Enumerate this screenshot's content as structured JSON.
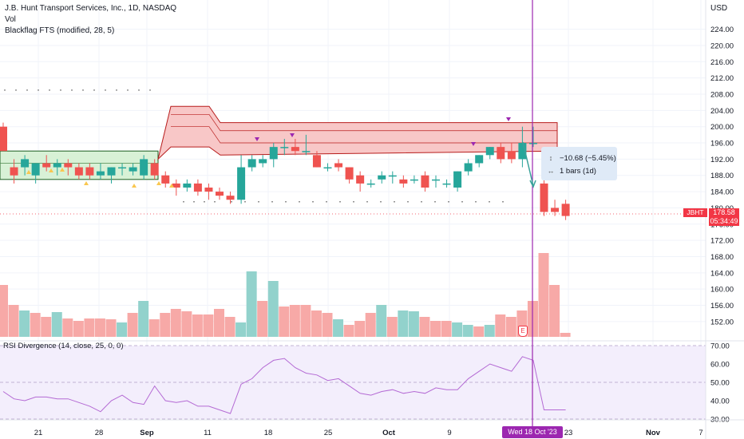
{
  "legend": {
    "symbol_line": "J.B. Hunt Transport Services, Inc., 1D, NASDAQ",
    "vol_label": "Vol",
    "indicator_label": "Blackflag FTS (modified, 28, 5)"
  },
  "currency_button": "USD",
  "price_axis": {
    "ticks": [
      "224.00",
      "220.00",
      "216.00",
      "212.00",
      "208.00",
      "204.00",
      "200.00",
      "196.00",
      "192.00",
      "188.00",
      "184.00",
      "180.00",
      "176.00",
      "172.00",
      "168.00",
      "164.00",
      "160.00",
      "156.00",
      "152.00"
    ]
  },
  "rsi": {
    "label": "RSI Divergence (14, close, 25, 0, 0)",
    "ticks": [
      "70.00",
      "60.00",
      "50.00",
      "40.00",
      "30.00"
    ],
    "values": [
      45,
      41,
      40,
      42,
      42,
      41,
      41,
      39,
      37,
      34,
      40,
      43,
      39,
      38,
      48,
      40,
      39,
      40,
      37,
      37,
      35,
      33,
      49,
      52,
      58,
      62,
      63,
      58,
      55,
      54,
      51,
      52,
      48,
      44,
      43,
      45,
      46,
      44,
      45,
      44,
      47,
      46,
      46,
      52,
      56,
      60,
      58,
      56,
      64,
      62,
      35,
      35,
      35
    ]
  },
  "time_axis": {
    "labels": [
      "21",
      "28",
      "Sep",
      "11",
      "18",
      "25",
      "Oct",
      "9",
      "23",
      "Nov",
      "7"
    ]
  },
  "crosshair": {
    "date_label": "Wed 18 Oct '23"
  },
  "measure": {
    "change": "−10.68 (−5.45%)",
    "bars": "1 bars (1d)"
  },
  "last_price": {
    "ticker": "JBHT",
    "price": "178.58",
    "countdown": "05:34:49"
  },
  "earnings_marker": "E",
  "colors": {
    "up": "#26a69a",
    "down": "#ef5350",
    "crosshair": "#9c27b0",
    "band_red": "#f8c7c7",
    "band_green": "#d8f1d6"
  },
  "chart_data": {
    "type": "candlestick",
    "bars": [
      {
        "o": 200,
        "h": 201,
        "l": 195,
        "c": 194
      },
      {
        "o": 190,
        "h": 192,
        "l": 186,
        "c": 188
      },
      {
        "o": 190,
        "h": 193,
        "l": 188,
        "c": 192
      },
      {
        "o": 188,
        "h": 191,
        "l": 186,
        "c": 191
      },
      {
        "o": 191,
        "h": 193,
        "l": 189,
        "c": 190
      },
      {
        "o": 190,
        "h": 192,
        "l": 188,
        "c": 191
      },
      {
        "o": 191,
        "h": 192,
        "l": 188,
        "c": 190
      },
      {
        "o": 190,
        "h": 191,
        "l": 187,
        "c": 188
      },
      {
        "o": 190,
        "h": 191,
        "l": 187,
        "c": 188
      },
      {
        "o": 188,
        "h": 191,
        "l": 187,
        "c": 189
      },
      {
        "o": 188,
        "h": 190,
        "l": 186,
        "c": 190
      },
      {
        "o": 190,
        "h": 191,
        "l": 188,
        "c": 190
      },
      {
        "o": 189,
        "h": 191,
        "l": 188,
        "c": 190
      },
      {
        "o": 188,
        "h": 193,
        "l": 187,
        "c": 192
      },
      {
        "o": 191,
        "h": 192,
        "l": 187,
        "c": 188
      },
      {
        "o": 188,
        "h": 189,
        "l": 185,
        "c": 186
      },
      {
        "o": 186,
        "h": 187,
        "l": 183,
        "c": 185
      },
      {
        "o": 185,
        "h": 187,
        "l": 184,
        "c": 186
      },
      {
        "o": 186,
        "h": 187,
        "l": 183,
        "c": 184
      },
      {
        "o": 185,
        "h": 186,
        "l": 182,
        "c": 184
      },
      {
        "o": 184,
        "h": 185,
        "l": 182,
        "c": 183
      },
      {
        "o": 183,
        "h": 184,
        "l": 181,
        "c": 182
      },
      {
        "o": 182,
        "h": 193,
        "l": 181,
        "c": 190
      },
      {
        "o": 190,
        "h": 193,
        "l": 189,
        "c": 192
      },
      {
        "o": 191,
        "h": 193,
        "l": 190,
        "c": 192
      },
      {
        "o": 192,
        "h": 196,
        "l": 190,
        "c": 195
      },
      {
        "o": 195,
        "h": 197,
        "l": 193,
        "c": 195
      },
      {
        "o": 195,
        "h": 197,
        "l": 193,
        "c": 194
      },
      {
        "o": 194,
        "h": 198,
        "l": 193,
        "c": 194
      },
      {
        "o": 193,
        "h": 194,
        "l": 190,
        "c": 190
      },
      {
        "o": 190,
        "h": 191,
        "l": 189,
        "c": 190
      },
      {
        "o": 191,
        "h": 192,
        "l": 189,
        "c": 190
      },
      {
        "o": 190,
        "h": 190,
        "l": 186,
        "c": 187
      },
      {
        "o": 188,
        "h": 189,
        "l": 184,
        "c": 186
      },
      {
        "o": 186,
        "h": 187,
        "l": 185,
        "c": 186
      },
      {
        "o": 187,
        "h": 189,
        "l": 186,
        "c": 188
      },
      {
        "o": 188,
        "h": 189,
        "l": 186,
        "c": 188
      },
      {
        "o": 187,
        "h": 188,
        "l": 185,
        "c": 186
      },
      {
        "o": 187,
        "h": 188,
        "l": 186,
        "c": 187
      },
      {
        "o": 188,
        "h": 189,
        "l": 184,
        "c": 185
      },
      {
        "o": 187,
        "h": 188,
        "l": 185,
        "c": 187
      },
      {
        "o": 186,
        "h": 187,
        "l": 185,
        "c": 186
      },
      {
        "o": 185,
        "h": 189,
        "l": 184,
        "c": 189
      },
      {
        "o": 189,
        "h": 192,
        "l": 188,
        "c": 191
      },
      {
        "o": 191,
        "h": 193,
        "l": 190,
        "c": 193
      },
      {
        "o": 193,
        "h": 195,
        "l": 192,
        "c": 195
      },
      {
        "o": 195,
        "h": 196,
        "l": 191,
        "c": 192
      },
      {
        "o": 194,
        "h": 196,
        "l": 191,
        "c": 192
      },
      {
        "o": 192,
        "h": 200,
        "l": 190,
        "c": 196
      },
      {
        "o": 196,
        "h": 200,
        "l": 195,
        "c": 196
      },
      {
        "o": 186,
        "h": 187,
        "l": 178,
        "c": 179
      },
      {
        "o": 180,
        "h": 182,
        "l": 178,
        "c": 179
      },
      {
        "o": 181,
        "h": 182,
        "l": 177,
        "c": 178
      }
    ],
    "volume_px": [
      65,
      40,
      33,
      30,
      25,
      31,
      23,
      20,
      23,
      23,
      22,
      18,
      30,
      45,
      22,
      30,
      35,
      32,
      28,
      28,
      35,
      25,
      18,
      82,
      45,
      70,
      38,
      40,
      40,
      33,
      30,
      22,
      15,
      20,
      30,
      40,
      25,
      33,
      32,
      25,
      20,
      20,
      18,
      15,
      13,
      15,
      28,
      25,
      33,
      45,
      105,
      65,
      5
    ],
    "volume_up": [
      false,
      false,
      true,
      false,
      false,
      true,
      false,
      false,
      false,
      false,
      false,
      true,
      false,
      true,
      false,
      false,
      false,
      false,
      false,
      false,
      false,
      false,
      true,
      true,
      false,
      true,
      false,
      false,
      false,
      false,
      false,
      true,
      false,
      false,
      false,
      true,
      false,
      true,
      true,
      false,
      false,
      false,
      true,
      true,
      false,
      true,
      false,
      false,
      false,
      false,
      false,
      false,
      false
    ]
  }
}
